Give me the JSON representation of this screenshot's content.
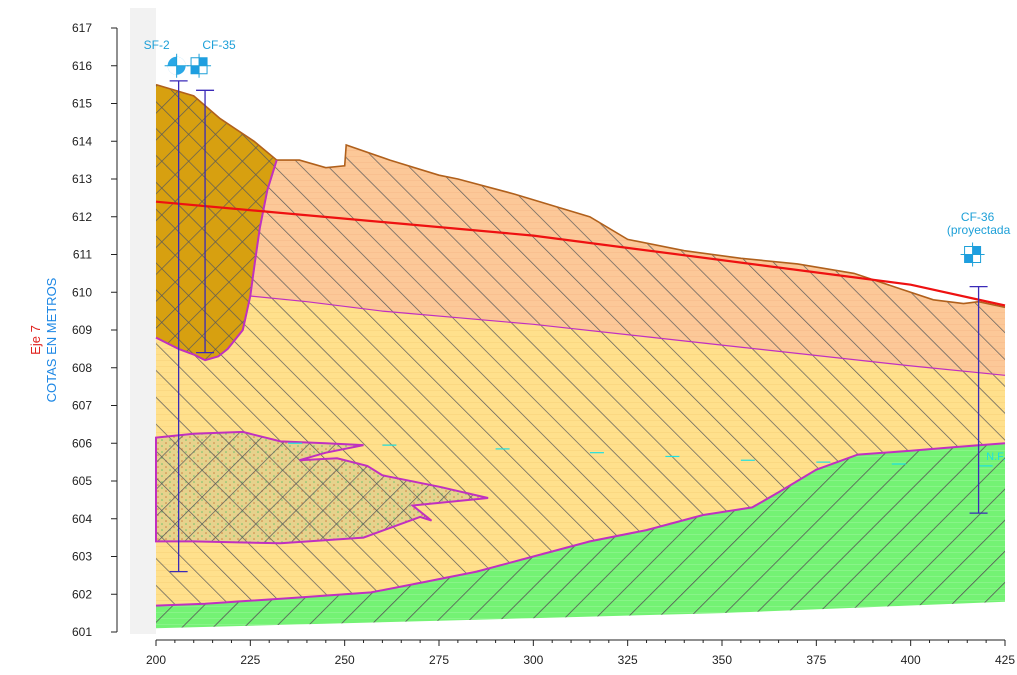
{
  "section": {
    "title_line1": "Eje 7",
    "title_line2_part1": "COTAS ",
    "title_line2_part2": "EN",
    "title_line2_part3": " METROS",
    "title_color": "#e0201c",
    "units_color": "#1e88e5"
  },
  "y_axis": {
    "min": 601,
    "max": 617,
    "ticks": [
      601,
      602,
      603,
      604,
      605,
      606,
      607,
      608,
      609,
      610,
      611,
      612,
      613,
      614,
      615,
      616,
      617
    ]
  },
  "x_axis": {
    "min": 200,
    "max": 425,
    "ticks": [
      200,
      225,
      250,
      275,
      300,
      325,
      350,
      375,
      400,
      425
    ]
  },
  "boreholes": [
    {
      "id": "SF-2",
      "label": "SF-2",
      "x": 206,
      "top": 615.6,
      "bottom": 602.6,
      "symbol": "circle-icon"
    },
    {
      "id": "CF-35",
      "label": "CF-35",
      "x": 213,
      "top": 615.35,
      "bottom": 608.4,
      "symbol": "square-icon"
    },
    {
      "id": "CF-36",
      "label_line1": "CF-36",
      "label_line2": "(proyectada",
      "x": 418,
      "top": 610.15,
      "bottom": 604.15,
      "symbol": "square-icon"
    }
  ],
  "colors": {
    "fill_dark": "#d7a010",
    "fill_orange": "#fcc898",
    "fill_yellow": "#ffe08c",
    "fill_green": "#74f274",
    "fill_lens": "#e6d28c",
    "ground_line": "#b0601c",
    "red_line": "#ee1111",
    "contact_line": "#c030c0",
    "borehole": "#3a2ab8",
    "water": "#1ee0e0",
    "hatch": "#5a5a5a",
    "bh_label": "#1ea0d8"
  },
  "water_label": "N.F."
}
